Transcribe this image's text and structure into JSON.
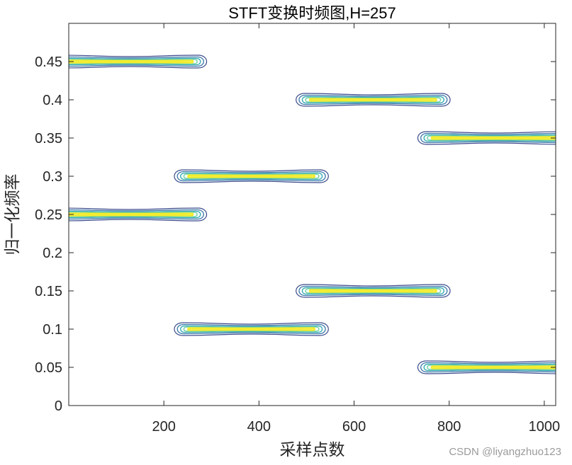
{
  "chart_data": {
    "type": "contour",
    "title": "STFT变换时频图,H=257",
    "xlabel": "采样点数",
    "ylabel": "归一化频率",
    "xlim": [
      0,
      1024
    ],
    "ylim": [
      0,
      0.5
    ],
    "xticks": [
      200,
      400,
      600,
      800,
      1000
    ],
    "yticks": [
      0,
      0.05,
      0.1,
      0.15,
      0.2,
      0.25,
      0.3,
      0.35,
      0.4,
      0.45
    ],
    "xtick_labels": [
      "200",
      "400",
      "600",
      "800",
      "1000"
    ],
    "ytick_labels": [
      "0",
      "0.05",
      "0.1",
      "0.15",
      "0.2",
      "0.25",
      "0.3",
      "0.35",
      "0.4",
      "0.45"
    ],
    "grid": false,
    "contour_levels": [
      "outer",
      "mid-outer",
      "mid",
      "mid-inner",
      "peak"
    ],
    "level_colors": [
      "#3b4a8c",
      "#3a78a8",
      "#2ea9b0",
      "#6fd0a0",
      "#f2ec30"
    ],
    "components": [
      {
        "x_start": 0,
        "x_end": 256,
        "frequency": 0.45
      },
      {
        "x_start": 0,
        "x_end": 256,
        "frequency": 0.25
      },
      {
        "x_start": 256,
        "x_end": 512,
        "frequency": 0.3
      },
      {
        "x_start": 256,
        "x_end": 512,
        "frequency": 0.1
      },
      {
        "x_start": 512,
        "x_end": 768,
        "frequency": 0.4
      },
      {
        "x_start": 512,
        "x_end": 768,
        "frequency": 0.15
      },
      {
        "x_start": 768,
        "x_end": 1024,
        "frequency": 0.35
      },
      {
        "x_start": 768,
        "x_end": 1024,
        "frequency": 0.05
      }
    ]
  },
  "watermark": "CSDN @liyangzhuo123"
}
